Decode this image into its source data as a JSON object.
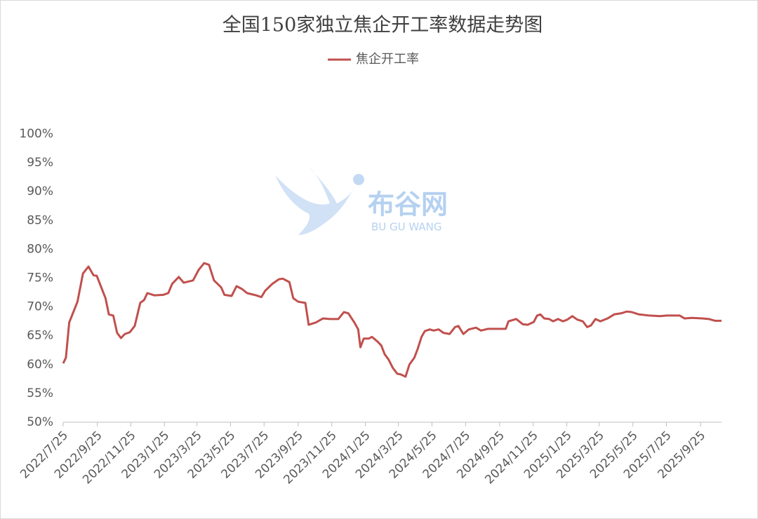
{
  "chart_data": {
    "type": "line",
    "title": "全国150家独立焦企开工率数据走势图",
    "watermark": {
      "name": "布谷网",
      "latin": "BU GU WANG"
    },
    "x": [
      "2022/7/25",
      "2022/7/30",
      "2022/8/5",
      "2022/8/20",
      "2022/8/30",
      "2022/9/9",
      "2022/9/18",
      "2022/9/24",
      "2022/10/10",
      "2022/10/16",
      "2022/10/24",
      "2022/10/31",
      "2022/11/7",
      "2022/11/14",
      "2022/11/23",
      "2022/12/2",
      "2022/12/12",
      "2022/12/19",
      "2022/12/25",
      "2023/1/7",
      "2023/1/23",
      "2023/2/1",
      "2023/2/8",
      "2023/2/20",
      "2023/3/1",
      "2023/3/18",
      "2023/3/28",
      "2023/4/7",
      "2023/4/16",
      "2023/4/25",
      "2023/5/8",
      "2023/5/14",
      "2023/5/27",
      "2023/6/5",
      "2023/6/15",
      "2023/6/24",
      "2023/7/11",
      "2023/7/20",
      "2023/7/27",
      "2023/8/9",
      "2023/8/21",
      "2023/8/28",
      "2023/9/9",
      "2023/9/16",
      "2023/9/25",
      "2023/10/8",
      "2023/10/14",
      "2023/10/27",
      "2023/11/9",
      "2023/11/22",
      "2023/12/7",
      "2023/12/17",
      "2023/12/25",
      "2024/1/5",
      "2024/1/12",
      "2024/1/16",
      "2024/1/22",
      "2024/1/31",
      "2024/2/6",
      "2024/2/16",
      "2024/2/23",
      "2024/2/29",
      "2024/3/7",
      "2024/3/15",
      "2024/3/23",
      "2024/3/29",
      "2024/4/7",
      "2024/4/14",
      "2024/4/23",
      "2024/4/29",
      "2024/5/6",
      "2024/5/12",
      "2024/5/21",
      "2024/5/28",
      "2024/6/6",
      "2024/6/15",
      "2024/6/26",
      "2024/7/6",
      "2024/7/12",
      "2024/7/21",
      "2024/7/31",
      "2024/8/13",
      "2024/8/22",
      "2024/9/4",
      "2024/9/23",
      "2024/10/6",
      "2024/10/11",
      "2024/10/25",
      "2024/11/6",
      "2024/11/15",
      "2024/11/26",
      "2024/12/2",
      "2024/12/8",
      "2024/12/15",
      "2024/12/24",
      "2024/12/31",
      "2025/1/9",
      "2025/1/18",
      "2025/1/26",
      "2025/2/4",
      "2025/2/13",
      "2025/2/23",
      "2025/3/3",
      "2025/3/10",
      "2025/3/18",
      "2025/3/27",
      "2025/4/9",
      "2025/4/21",
      "2025/5/4",
      "2025/5/14",
      "2025/5/23",
      "2025/6/5",
      "2025/6/24",
      "2025/7/13",
      "2025/7/26",
      "2025/8/18",
      "2025/8/27",
      "2025/9/9",
      "2025/9/28",
      "2025/10/10",
      "2025/10/21",
      "2025/11/2"
    ],
    "series": [
      {
        "name": "焦企开工率",
        "color": "#c0504d",
        "values": [
          60.2,
          61.2,
          67.3,
          70.9,
          75.8,
          77.0,
          75.5,
          75.4,
          71.5,
          68.7,
          68.5,
          65.5,
          64.6,
          65.3,
          65.6,
          66.7,
          70.7,
          71.2,
          72.4,
          72.0,
          72.1,
          72.4,
          74.0,
          75.2,
          74.2,
          74.6,
          76.4,
          77.6,
          77.3,
          74.6,
          73.4,
          72.1,
          71.9,
          73.6,
          73.1,
          72.4,
          72.0,
          71.7,
          72.8,
          74.0,
          74.8,
          74.9,
          74.3,
          71.5,
          70.9,
          70.7,
          66.9,
          67.3,
          68.0,
          67.9,
          67.9,
          69.1,
          68.9,
          67.3,
          66.1,
          63.0,
          64.5,
          64.5,
          64.8,
          64.0,
          63.3,
          61.8,
          60.9,
          59.4,
          58.4,
          58.3,
          57.9,
          60.0,
          61.2,
          62.7,
          64.8,
          65.8,
          66.1,
          65.9,
          66.1,
          65.5,
          65.3,
          66.5,
          66.7,
          65.3,
          66.1,
          66.4,
          65.9,
          66.2,
          66.2,
          66.2,
          67.5,
          67.9,
          67.0,
          66.9,
          67.4,
          68.5,
          68.7,
          68.0,
          67.9,
          67.5,
          67.9,
          67.5,
          67.8,
          68.4,
          67.8,
          67.5,
          66.5,
          66.8,
          67.9,
          67.5,
          68.0,
          68.7,
          68.9,
          69.2,
          69.1,
          68.7,
          68.5,
          68.4,
          68.5,
          68.5,
          68.0,
          68.1,
          68.0,
          67.9,
          67.6,
          67.6
        ]
      }
    ],
    "xlim": [
      "2022/7/25",
      "2025/11/2"
    ],
    "xticks": [
      "2022/7/25",
      "2022/9/25",
      "2022/11/25",
      "2023/1/25",
      "2023/3/25",
      "2023/5/25",
      "2023/7/25",
      "2023/9/25",
      "2023/11/25",
      "2024/1/25",
      "2024/3/25",
      "2024/5/25",
      "2024/7/25",
      "2024/9/25",
      "2024/11/25",
      "2025/1/25",
      "2025/3/25",
      "2025/5/25",
      "2025/7/25",
      "2025/9/25"
    ],
    "ylim": [
      50,
      100
    ],
    "yticks": [
      {
        "value": 50,
        "label": "50%"
      },
      {
        "value": 55,
        "label": "55%"
      },
      {
        "value": 60,
        "label": "60%"
      },
      {
        "value": 65,
        "label": "65%"
      },
      {
        "value": 70,
        "label": "70%"
      },
      {
        "value": 75,
        "label": "75%"
      },
      {
        "value": 80,
        "label": "80%"
      },
      {
        "value": 85,
        "label": "85%"
      },
      {
        "value": 90,
        "label": "90%"
      },
      {
        "value": 95,
        "label": "95%"
      },
      {
        "value": 100,
        "label": "100%"
      }
    ],
    "grid": false,
    "legend": "top"
  }
}
